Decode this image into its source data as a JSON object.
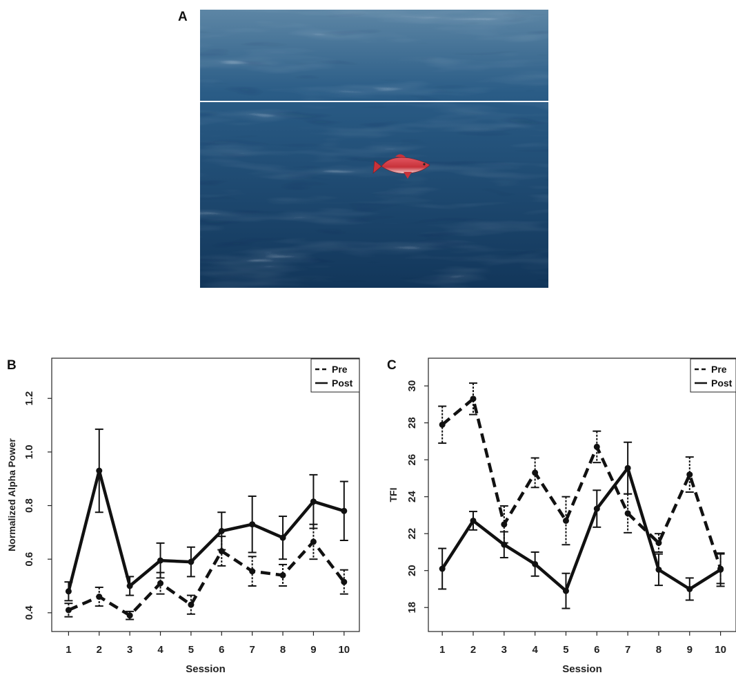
{
  "panels": {
    "a": "A",
    "b": "B",
    "c": "C"
  },
  "photo": {
    "icon": "fish-icon",
    "water_colors": {
      "deep": "#12365a",
      "mid": "#1f5a8a",
      "highlight": "#e6ecf4"
    },
    "fish_color": "#c8323a"
  },
  "chart_data": [
    {
      "type": "line",
      "panel": "B",
      "title": "",
      "xlabel": "Session",
      "ylabel": "Normalized Alpha Power",
      "x": [
        1,
        2,
        3,
        4,
        5,
        6,
        7,
        8,
        9,
        10
      ],
      "yticks": [
        0.4,
        0.6,
        0.8,
        1.0,
        1.2
      ],
      "ytick_labels": [
        "0.4",
        "0.6",
        "0.8",
        "1.0",
        "1.2"
      ],
      "ylim": [
        0.33,
        1.35
      ],
      "xlim": [
        0.45,
        10.5
      ],
      "legend_position": "top-right",
      "grid": false,
      "series": [
        {
          "name": "Pre",
          "style": "dashed",
          "values": [
            0.41,
            0.46,
            0.39,
            0.51,
            0.43,
            0.63,
            0.555,
            0.54,
            0.665,
            0.515
          ],
          "errors": [
            0.025,
            0.035,
            0.015,
            0.04,
            0.035,
            0.055,
            0.055,
            0.04,
            0.065,
            0.045
          ]
        },
        {
          "name": "Post",
          "style": "solid",
          "values": [
            0.48,
            0.93,
            0.5,
            0.595,
            0.59,
            0.705,
            0.73,
            0.68,
            0.815,
            0.78
          ],
          "errors": [
            0.035,
            0.155,
            0.035,
            0.065,
            0.055,
            0.07,
            0.105,
            0.08,
            0.1,
            0.11
          ]
        }
      ]
    },
    {
      "type": "line",
      "panel": "C",
      "title": "",
      "xlabel": "Session",
      "ylabel": "TFI",
      "x": [
        1,
        2,
        3,
        4,
        5,
        6,
        7,
        8,
        9,
        10
      ],
      "yticks": [
        18,
        20,
        22,
        24,
        26,
        28,
        30
      ],
      "ytick_labels": [
        "18",
        "20",
        "22",
        "24",
        "26",
        "28",
        "30"
      ],
      "ylim": [
        16.7,
        31.5
      ],
      "xlim": [
        0.55,
        10.5
      ],
      "legend_position": "top-right",
      "grid": false,
      "series": [
        {
          "name": "Pre",
          "style": "dashed",
          "values": [
            27.9,
            29.3,
            22.5,
            25.3,
            22.7,
            26.7,
            23.1,
            21.5,
            25.2,
            20.1
          ],
          "errors": [
            1.0,
            0.85,
            1.0,
            0.8,
            1.3,
            0.85,
            1.05,
            0.5,
            0.95,
            0.8
          ]
        },
        {
          "name": "Post",
          "style": "solid",
          "values": [
            20.1,
            22.7,
            21.4,
            20.35,
            18.9,
            23.35,
            25.55,
            20.05,
            19.0,
            20.05
          ],
          "errors": [
            1.1,
            0.5,
            0.7,
            0.65,
            0.95,
            1.0,
            1.4,
            0.85,
            0.6,
            0.9
          ]
        }
      ]
    }
  ]
}
